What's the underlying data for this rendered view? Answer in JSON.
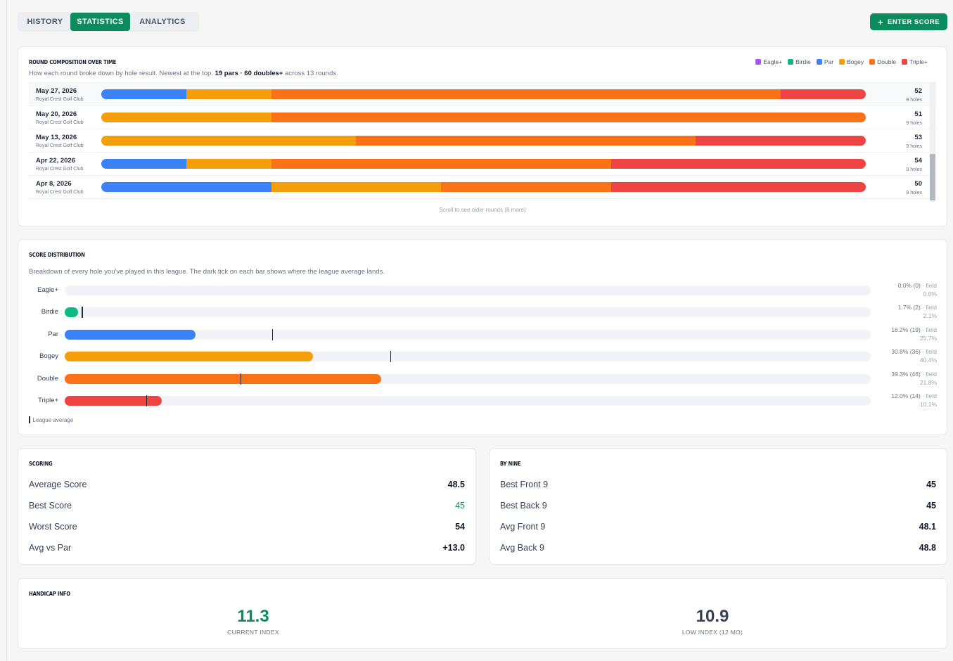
{
  "tabs": [
    "HISTORY",
    "STATISTICS",
    "ANALYTICS"
  ],
  "enter_score_label": "ENTER SCORE",
  "colors": {
    "accent": "#0e8a5f",
    "eagle": "#a855f7",
    "birdie": "#10b981",
    "par": "#3b82f6",
    "bogey": "#f59e0b",
    "double": "#f97316",
    "triple": "#ef4444"
  },
  "composition": {
    "title": "ROUND COMPOSITION OVER TIME",
    "subtitle_prefix": "How each round broke down by hole result. Newest at the top.",
    "subtitle_bold": "19 pars · 60 doubles+",
    "subtitle_suffix": "across 13 rounds.",
    "legend": [
      "Eagle+",
      "Birdie",
      "Par",
      "Bogey",
      "Double",
      "Triple+"
    ],
    "rounds": [
      {
        "date": "May 27, 2026",
        "course": "Royal Crest Golf Club",
        "score": "52",
        "holes": "9 holes",
        "counts": [
          0,
          0,
          1,
          1,
          6,
          1
        ]
      },
      {
        "date": "May 20, 2026",
        "course": "Royal Crest Golf Club",
        "score": "51",
        "holes": "9 holes",
        "counts": [
          0,
          0,
          0,
          2,
          7,
          0
        ]
      },
      {
        "date": "May 13, 2026",
        "course": "Royal Crest Golf Club",
        "score": "53",
        "holes": "9 holes",
        "counts": [
          0,
          0,
          0,
          3,
          4,
          2
        ]
      },
      {
        "date": "Apr 22, 2026",
        "course": "Royal Crest Golf Club",
        "score": "54",
        "holes": "9 holes",
        "counts": [
          0,
          0,
          1,
          1,
          4,
          3
        ]
      },
      {
        "date": "Apr 8, 2026",
        "course": "Royal Crest Golf Club",
        "score": "50",
        "holes": "9 holes",
        "counts": [
          0,
          0,
          2,
          2,
          2,
          3
        ]
      }
    ],
    "scroll_hint": "Scroll to see older rounds (8 more)"
  },
  "distribution": {
    "title": "SCORE DISTRIBUTION",
    "subtitle": "Breakdown of every hole you've played in this league. The dark tick on each bar shows where the league average lands.",
    "rows": [
      {
        "label": "Eagle+",
        "pct": 0.0,
        "pct_text": "0.0% (0)",
        "field_label": "· field",
        "field_text": "0.0%",
        "field": 0.0,
        "color": "#a855f7"
      },
      {
        "label": "Birdie",
        "pct": 1.7,
        "pct_text": "1.7% (2)",
        "field_label": "· field",
        "field_text": "2.1%",
        "field": 2.1,
        "color": "#10b981"
      },
      {
        "label": "Par",
        "pct": 16.2,
        "pct_text": "16.2% (19)",
        "field_label": "· field",
        "field_text": "25.7%",
        "field": 25.7,
        "color": "#3b82f6"
      },
      {
        "label": "Bogey",
        "pct": 30.8,
        "pct_text": "30.8% (36)",
        "field_label": "· field",
        "field_text": "40.4%",
        "field": 40.4,
        "color": "#f59e0b"
      },
      {
        "label": "Double",
        "pct": 39.3,
        "pct_text": "39.3% (46)",
        "field_label": "· field",
        "field_text": "21.8%",
        "field": 21.8,
        "color": "#f97316"
      },
      {
        "label": "Triple+",
        "pct": 12.0,
        "pct_text": "12.0% (14)",
        "field_label": "· field",
        "field_text": "10.1%",
        "field": 10.1,
        "color": "#ef4444"
      }
    ],
    "note": "League average"
  },
  "scoring": {
    "title": "SCORING",
    "rows": [
      {
        "label": "Average Score",
        "value": "48.5"
      },
      {
        "label": "Best Score",
        "value": "45"
      },
      {
        "label": "Worst Score",
        "value": "54"
      },
      {
        "label": "Avg vs Par",
        "value": "+13.0"
      }
    ]
  },
  "by_nine": {
    "title": "BY NINE",
    "rows": [
      {
        "label": "Best Front 9",
        "value": "45"
      },
      {
        "label": "Best Back 9",
        "value": "45"
      },
      {
        "label": "Avg Front 9",
        "value": "48.1"
      },
      {
        "label": "Avg Back 9",
        "value": "48.8"
      }
    ]
  },
  "handicap": {
    "title": "HANDICAP INFO",
    "current_value": "11.3",
    "current_label": "CURRENT INDEX",
    "low_value": "10.9",
    "low_label": "LOW INDEX (12 MO)"
  }
}
